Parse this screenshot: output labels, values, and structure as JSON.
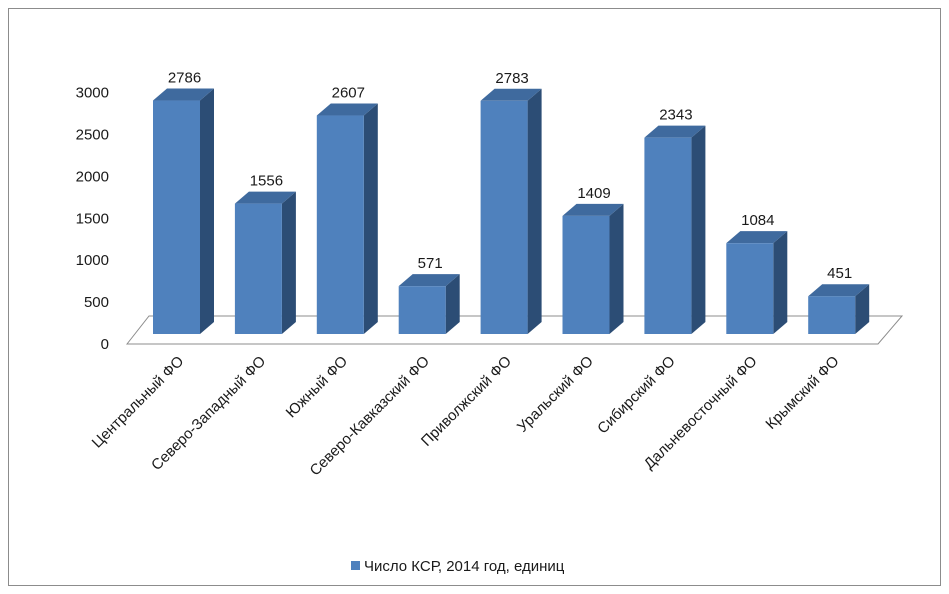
{
  "chart_data": {
    "type": "bar",
    "categories": [
      "Центральный ФО",
      "Северо-Западный ФО",
      "Южный ФО",
      "Северо-Кавказский ФО",
      "Приволжский ФО",
      "Уральский ФО",
      "Сибирский ФО",
      "Дальневосточный ФО",
      "Крымский ФО"
    ],
    "series": [
      {
        "name": "Число КСР, 2014 год, единиц",
        "values": [
          2786,
          1556,
          2607,
          571,
          2783,
          1409,
          2343,
          1084,
          451
        ],
        "color": "#4f81bd"
      }
    ],
    "ylim": [
      0,
      3000
    ],
    "yticks": [
      0,
      500,
      1000,
      1500,
      2000,
      2500,
      3000
    ],
    "grid": false,
    "legend_position": "bottom",
    "style": "3d-column",
    "colors": {
      "front": "#4f81bd",
      "side": "#2c4d75",
      "top": "#3f6a9e"
    }
  }
}
